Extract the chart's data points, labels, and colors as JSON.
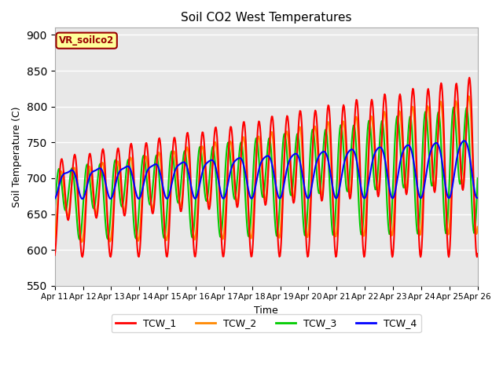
{
  "title": "Soil CO2 West Temperatures",
  "xlabel": "Time",
  "ylabel": "Soil Temperature (C)",
  "ylim": [
    550,
    910
  ],
  "yticks": [
    550,
    600,
    650,
    700,
    750,
    800,
    850,
    900
  ],
  "x_labels": [
    "Apr 11",
    "Apr 12",
    "Apr 13",
    "Apr 14",
    "Apr 15",
    "Apr 16",
    "Apr 17",
    "Apr 18",
    "Apr 19",
    "Apr 20",
    "Apr 21",
    "Apr 22",
    "Apr 23",
    "Apr 24",
    "Apr 25",
    "Apr 26"
  ],
  "colors": {
    "TCW_1": "#ff0000",
    "TCW_2": "#ff8800",
    "TCW_3": "#00cc00",
    "TCW_4": "#0000ff"
  },
  "line_width": 1.5,
  "bg_color": "#e8e8e8",
  "grid_color": "#ffffff",
  "annotation_text": "VR_soilco2",
  "annotation_bg": "#ffff99",
  "annotation_border": "#990000",
  "legend_entries": [
    "TCW_1",
    "TCW_2",
    "TCW_3",
    "TCW_4"
  ]
}
